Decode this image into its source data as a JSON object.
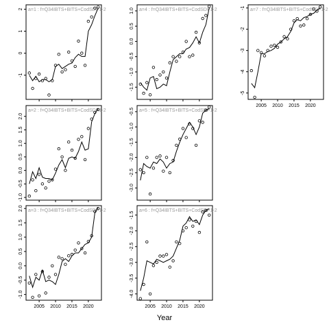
{
  "xlabel": "Year",
  "chart_data": [
    {
      "type": "scatter",
      "title": "a=1 : f=Q34IBTS+BITS+CodSDP1-2",
      "xlim": [
        2001,
        2024
      ],
      "ylim": [
        -2.1,
        2.2
      ],
      "xticks": [
        2005,
        2010,
        2015,
        2020
      ],
      "yticks": [
        -1,
        0,
        1,
        2
      ],
      "ytick_labels": [
        "-1",
        "0",
        "1",
        "2"
      ],
      "x": [
        2002,
        2003,
        2004,
        2005,
        2006,
        2007,
        2008,
        2009,
        2010,
        2011,
        2012,
        2013,
        2014,
        2015,
        2016,
        2017,
        2018,
        2019,
        2020,
        2021,
        2022,
        2023
      ],
      "points": [
        -0.9,
        -1.6,
        -1.15,
        -0.95,
        -1.25,
        -1.15,
        -1.9,
        -1.25,
        -0.55,
        -0.05,
        -0.85,
        -0.75,
        0.05,
        -0.35,
        -0.6,
        0.55,
        0.0,
        -0.55,
        1.45,
        1.65,
        2.05,
        2.1
      ],
      "line": [
        -1.0,
        -1.25,
        -1.05,
        -1.3,
        -1.2,
        -1.2,
        -1.3,
        -1.2,
        -0.6,
        -0.5,
        -0.7,
        -0.6,
        -0.5,
        -0.45,
        -0.2,
        -0.05,
        -0.15,
        -0.15,
        1.0,
        1.3,
        1.7,
        2.05
      ]
    },
    {
      "type": "scatter",
      "title": "a=2 : f=Q34IBTS+BITS+CodSDP1-2",
      "xlim": [
        2001,
        2024
      ],
      "ylim": [
        -1.1,
        2.4
      ],
      "xticks": [
        2005,
        2010,
        2015,
        2020
      ],
      "yticks": [
        -1,
        -0.5,
        0,
        0.5,
        1,
        1.5,
        2
      ],
      "ytick_labels": [
        "-1.0",
        "-0.5",
        "0.0",
        "0.5",
        "1.0",
        "1.5",
        "2.0"
      ],
      "x": [
        2002,
        2003,
        2004,
        2005,
        2006,
        2007,
        2008,
        2009,
        2010,
        2011,
        2012,
        2013,
        2014,
        2015,
        2016,
        2017,
        2018,
        2019,
        2020,
        2021,
        2022,
        2023
      ],
      "points": [
        -0.95,
        -0.35,
        -0.75,
        -0.15,
        -0.5,
        -0.65,
        -0.4,
        -0.35,
        0.05,
        0.8,
        0.5,
        0.0,
        1.05,
        0.75,
        0.45,
        1.15,
        1.25,
        0.4,
        1.55,
        1.9,
        2.15,
        2.25
      ],
      "line": [
        -0.5,
        -0.05,
        -0.3,
        0.1,
        -0.25,
        -0.3,
        -0.3,
        -0.35,
        -0.1,
        0.2,
        0.4,
        0.1,
        0.45,
        0.5,
        0.45,
        0.7,
        1.05,
        0.75,
        0.8,
        1.8,
        2.1,
        2.3
      ]
    },
    {
      "type": "scatter",
      "title": "a=3 : f=Q34IBTS+BITS+CodSDP1-2",
      "xlim": [
        2001,
        2024
      ],
      "ylim": [
        -1.2,
        2.1
      ],
      "xticks": [
        2005,
        2010,
        2015,
        2020
      ],
      "yticks": [
        -1,
        -0.5,
        0,
        0.5,
        1,
        1.5,
        2
      ],
      "ytick_labels": [
        "-1.0",
        "-0.5",
        "0.0",
        "0.5",
        "1.0",
        "1.5",
        "2.0"
      ],
      "x": [
        2002,
        2003,
        2004,
        2005,
        2006,
        2007,
        2008,
        2009,
        2010,
        2011,
        2012,
        2013,
        2014,
        2015,
        2016,
        2017,
        2018,
        2019,
        2020,
        2021,
        2022,
        2023
      ],
      "points": [
        -0.6,
        -1.1,
        -0.3,
        -1.05,
        -0.2,
        -0.95,
        -0.4,
        0.0,
        -0.3,
        0.3,
        0.25,
        0.05,
        0.35,
        0.4,
        0.55,
        0.8,
        0.6,
        0.45,
        0.85,
        1.05,
        1.9,
        2.0
      ],
      "line": [
        -0.35,
        -0.75,
        -0.4,
        -0.5,
        -0.15,
        -0.55,
        -0.5,
        -0.55,
        -0.65,
        -0.3,
        0.15,
        0.25,
        0.15,
        0.35,
        0.45,
        0.45,
        0.6,
        0.75,
        0.8,
        1.0,
        1.85,
        2.05
      ]
    },
    {
      "type": "scatter",
      "title": "a=4 : f=Q34IBTS+BITS+CodSDP1-2",
      "xlim": [
        2001,
        2024
      ],
      "ylim": [
        -1.9,
        1.2
      ],
      "xticks": [
        2005,
        2010,
        2015,
        2020
      ],
      "yticks": [
        -1.5,
        -1,
        -0.5,
        0,
        0.5,
        1
      ],
      "ytick_labels": [
        "-1.5",
        "-1.0",
        "-0.5",
        "0.0",
        "0.5",
        "1.0"
      ],
      "x": [
        2002,
        2003,
        2004,
        2005,
        2006,
        2007,
        2008,
        2009,
        2010,
        2011,
        2012,
        2013,
        2014,
        2015,
        2016,
        2017,
        2018,
        2019,
        2020,
        2021,
        2022,
        2023
      ],
      "points": [
        -1.4,
        -1.7,
        -1.35,
        -1.75,
        -0.85,
        -1.25,
        -1.1,
        -1.0,
        -1.2,
        -0.7,
        -0.5,
        -0.65,
        -0.5,
        -0.35,
        0.0,
        -0.5,
        -0.45,
        0.3,
        -0.05,
        0.75,
        0.85,
        1.15
      ],
      "line": [
        -1.35,
        -1.5,
        -1.6,
        -1.2,
        -1.15,
        -1.55,
        -1.5,
        -1.4,
        -1.45,
        -1.0,
        -0.6,
        -0.5,
        -0.4,
        -0.4,
        -0.25,
        -0.2,
        -0.05,
        0.15,
        -0.05,
        0.3,
        0.55,
        1.1
      ]
    },
    {
      "type": "scatter",
      "title": "a=5 : f=Q34IBTS+BITS+CodSDP1-2",
      "xlim": [
        2001,
        2024
      ],
      "ylim": [
        -3.4,
        -0.3
      ],
      "xticks": [
        2005,
        2010,
        2015,
        2020
      ],
      "yticks": [
        -3,
        -2.5,
        -2,
        -1.5,
        -1,
        -0.5
      ],
      "ytick_labels": [
        "-3.0",
        "-2.5",
        "-2.0",
        "-1.5",
        "-1.0",
        "-0.5"
      ],
      "x": [
        2002,
        2003,
        2004,
        2005,
        2006,
        2007,
        2008,
        2009,
        2010,
        2011,
        2012,
        2013,
        2014,
        2015,
        2016,
        2017,
        2018,
        2019,
        2020,
        2021,
        2022,
        2023
      ],
      "points": [
        -2.4,
        -2.5,
        -2.0,
        -3.2,
        -2.35,
        -2.0,
        -1.95,
        -2.45,
        -2.0,
        -2.5,
        -2.1,
        -1.6,
        -1.4,
        -1.05,
        -1.35,
        -0.9,
        -1.05,
        -1.6,
        -0.8,
        -0.85,
        -0.45,
        -0.35
      ],
      "line": [
        -2.75,
        -2.2,
        -2.3,
        -2.35,
        -2.15,
        -2.2,
        -2.05,
        -2.15,
        -2.35,
        -2.2,
        -2.15,
        -1.8,
        -1.5,
        -1.25,
        -1.05,
        -0.85,
        -1.0,
        -1.25,
        -1.0,
        -0.55,
        -0.45,
        -0.4
      ]
    },
    {
      "type": "scatter",
      "title": "a=6 : f=Q34IBTS+BITS+CodSDP1-2",
      "xlim": [
        2001,
        2024
      ],
      "ylim": [
        -4.2,
        -1.2
      ],
      "xticks": [
        2005,
        2010,
        2015,
        2020
      ],
      "yticks": [
        -4,
        -3.5,
        -3,
        -2.5,
        -2,
        -1.5
      ],
      "ytick_labels": [
        "-4.0",
        "-3.5",
        "-3.0",
        "-2.5",
        "-2.0",
        "-1.5"
      ],
      "x": [
        2002,
        2003,
        2004,
        2005,
        2006,
        2007,
        2008,
        2009,
        2010,
        2011,
        2012,
        2013,
        2014,
        2015,
        2016,
        2017,
        2018,
        2019,
        2020,
        2021,
        2022,
        2023
      ],
      "points": [
        -4.15,
        -3.7,
        -2.35,
        -4.0,
        -3.1,
        -3.0,
        -2.8,
        -2.8,
        -2.75,
        -3.15,
        -2.95,
        -2.35,
        -2.4,
        -2.0,
        -1.9,
        -1.65,
        -1.85,
        -1.7,
        -2.05,
        -1.4,
        -1.35,
        -1.5
      ],
      "line": [
        -3.9,
        -3.5,
        -2.95,
        -3.0,
        -3.05,
        -2.9,
        -2.95,
        -3.0,
        -2.95,
        -2.9,
        -2.8,
        -2.55,
        -2.3,
        -1.85,
        -1.75,
        -1.55,
        -1.7,
        -1.65,
        -1.8,
        -1.5,
        -1.35,
        -1.3
      ]
    },
    {
      "type": "scatter",
      "title": "a=7 : f=Q34IBTS+BITS+CodSDP1-2",
      "xlim": [
        2001,
        2024
      ],
      "ylim": [
        -5.3,
        -0.85
      ],
      "xticks": [
        2005,
        2010,
        2015,
        2020
      ],
      "yticks": [
        -5,
        -4,
        -3,
        -2,
        -1
      ],
      "ytick_labels": [
        "-5",
        "-4",
        "-3",
        "-2",
        "-1"
      ],
      "x": [
        2002,
        2003,
        2004,
        2005,
        2006,
        2007,
        2008,
        2009,
        2010,
        2011,
        2012,
        2013,
        2014,
        2015,
        2016,
        2017,
        2018,
        2019,
        2020,
        2021,
        2022,
        2023
      ],
      "points": [
        -3.95,
        -5.2,
        -3.0,
        -3.1,
        -3.25,
        -3.0,
        -2.8,
        -2.75,
        -2.85,
        -2.6,
        -2.35,
        -2.45,
        -2.0,
        -1.6,
        -1.5,
        -1.85,
        -1.8,
        -1.5,
        -1.3,
        -1.05,
        -1.15,
        -0.95
      ],
      "line": [
        -4.55,
        -4.75,
        -4.0,
        -3.15,
        -3.15,
        -3.05,
        -3.0,
        -2.9,
        -2.7,
        -2.6,
        -2.45,
        -2.35,
        -2.1,
        -1.7,
        -1.55,
        -1.6,
        -1.45,
        -1.4,
        -1.3,
        -1.25,
        -1.1,
        -1.0
      ]
    }
  ]
}
